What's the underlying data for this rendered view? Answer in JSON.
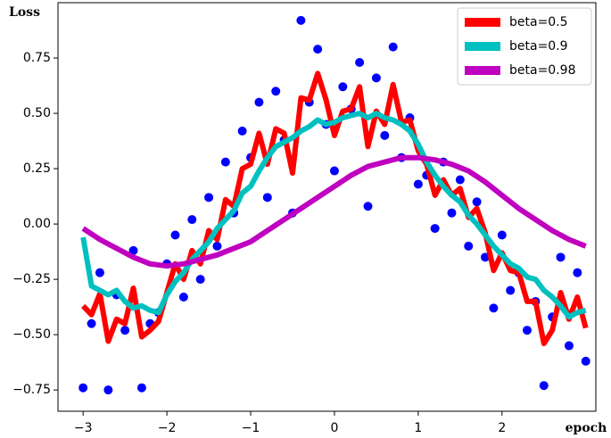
{
  "chart_data": {
    "type": "line",
    "y_label": "Loss",
    "x_label": "epoch",
    "xlim": [
      -3.3,
      3.12
    ],
    "ylim": [
      -0.846,
      1.0
    ],
    "xticks": [
      {
        "value": -3,
        "label": "−3"
      },
      {
        "value": -2,
        "label": "−2"
      },
      {
        "value": -1,
        "label": "−1"
      },
      0,
      1,
      2
    ],
    "yticks": [
      {
        "value": -0.75,
        "label": "−0.75"
      },
      {
        "value": -0.5,
        "label": "−0.50"
      },
      {
        "value": -0.25,
        "label": "−0.25"
      },
      {
        "value": 0,
        "label": "0.00"
      },
      {
        "value": 0.25,
        "label": "0.25"
      },
      {
        "value": 0.5,
        "label": "0.50"
      },
      {
        "value": 0.75,
        "label": "0.75"
      }
    ],
    "legend": "upper right",
    "x": [
      -3.0,
      -2.9,
      -2.8,
      -2.7,
      -2.6,
      -2.5,
      -2.4,
      -2.3,
      -2.2,
      -2.1,
      -2.0,
      -1.9,
      -1.8,
      -1.7,
      -1.6,
      -1.5,
      -1.4,
      -1.3,
      -1.2,
      -1.1,
      -1.0,
      -0.9,
      -0.8,
      -0.7,
      -0.6,
      -0.5,
      -0.4,
      -0.3,
      -0.2,
      -0.1,
      0.0,
      0.1,
      0.2,
      0.3,
      0.4,
      0.5,
      0.6,
      0.7,
      0.8,
      0.9,
      1.0,
      1.1,
      1.2,
      1.3,
      1.4,
      1.5,
      1.6,
      1.7,
      1.8,
      1.9,
      2.0,
      2.1,
      2.2,
      2.3,
      2.4,
      2.5,
      2.6,
      2.7,
      2.8,
      2.9,
      3.0
    ],
    "points": {
      "color": "#0000ff",
      "values": [
        -0.74,
        -0.45,
        -0.22,
        -0.75,
        -0.32,
        -0.48,
        -0.12,
        -0.74,
        -0.45,
        -0.4,
        -0.18,
        -0.05,
        -0.33,
        0.02,
        -0.25,
        0.12,
        -0.1,
        0.28,
        0.05,
        0.42,
        0.3,
        0.55,
        0.12,
        0.6,
        0.38,
        0.05,
        0.92,
        0.55,
        0.79,
        0.45,
        0.24,
        0.62,
        0.52,
        0.73,
        0.08,
        0.66,
        0.4,
        0.8,
        0.3,
        0.48,
        0.18,
        0.22,
        -0.02,
        0.28,
        0.05,
        0.2,
        -0.1,
        0.1,
        -0.15,
        -0.38,
        -0.05,
        -0.3,
        -0.22,
        -0.48,
        -0.35,
        -0.73,
        -0.42,
        -0.15,
        -0.55,
        -0.22,
        -0.62
      ]
    },
    "series": [
      {
        "name": "beta=0.5",
        "color": "#ff0000",
        "values": [
          -0.37,
          -0.41,
          -0.315,
          -0.53,
          -0.43,
          -0.45,
          -0.29,
          -0.51,
          -0.48,
          -0.44,
          -0.31,
          -0.18,
          -0.25,
          -0.12,
          -0.18,
          -0.03,
          -0.07,
          0.11,
          0.08,
          0.25,
          0.27,
          0.41,
          0.27,
          0.43,
          0.41,
          0.23,
          0.57,
          0.56,
          0.68,
          0.56,
          0.4,
          0.51,
          0.52,
          0.62,
          0.35,
          0.51,
          0.45,
          0.63,
          0.46,
          0.47,
          0.33,
          0.27,
          0.13,
          0.2,
          0.13,
          0.16,
          0.03,
          0.07,
          -0.04,
          -0.21,
          -0.13,
          -0.21,
          -0.22,
          -0.35,
          -0.35,
          -0.54,
          -0.48,
          -0.31,
          -0.43,
          -0.33,
          -0.47
        ]
      },
      {
        "name": "beta=0.9",
        "color": "#00c0c0",
        "values": [
          -0.06,
          -0.28,
          -0.3,
          -0.32,
          -0.3,
          -0.35,
          -0.38,
          -0.37,
          -0.39,
          -0.4,
          -0.32,
          -0.26,
          -0.22,
          -0.16,
          -0.12,
          -0.08,
          -0.02,
          0.02,
          0.06,
          0.14,
          0.17,
          0.24,
          0.3,
          0.35,
          0.37,
          0.39,
          0.42,
          0.44,
          0.47,
          0.45,
          0.46,
          0.48,
          0.49,
          0.5,
          0.48,
          0.5,
          0.48,
          0.47,
          0.45,
          0.42,
          0.36,
          0.28,
          0.22,
          0.17,
          0.13,
          0.1,
          0.04,
          0.0,
          -0.05,
          -0.1,
          -0.14,
          -0.18,
          -0.2,
          -0.24,
          -0.25,
          -0.3,
          -0.33,
          -0.37,
          -0.42,
          -0.4,
          -0.39
        ]
      },
      {
        "name": "beta=0.98",
        "color": "#c000c0",
        "x": [
          -3.0,
          -2.8,
          -2.6,
          -2.4,
          -2.2,
          -2.0,
          -1.8,
          -1.6,
          -1.4,
          -1.2,
          -1.0,
          -0.8,
          -0.6,
          -0.4,
          -0.2,
          0.0,
          0.2,
          0.4,
          0.6,
          0.8,
          1.0,
          1.2,
          1.4,
          1.6,
          1.8,
          2.0,
          2.2,
          2.4,
          2.6,
          2.8,
          3.0
        ],
        "values": [
          -0.02,
          -0.07,
          -0.11,
          -0.15,
          -0.18,
          -0.19,
          -0.18,
          -0.16,
          -0.14,
          -0.11,
          -0.08,
          -0.03,
          0.02,
          0.07,
          0.12,
          0.17,
          0.22,
          0.26,
          0.28,
          0.3,
          0.3,
          0.29,
          0.27,
          0.24,
          0.19,
          0.13,
          0.07,
          0.02,
          -0.03,
          -0.07,
          -0.1
        ]
      }
    ]
  }
}
